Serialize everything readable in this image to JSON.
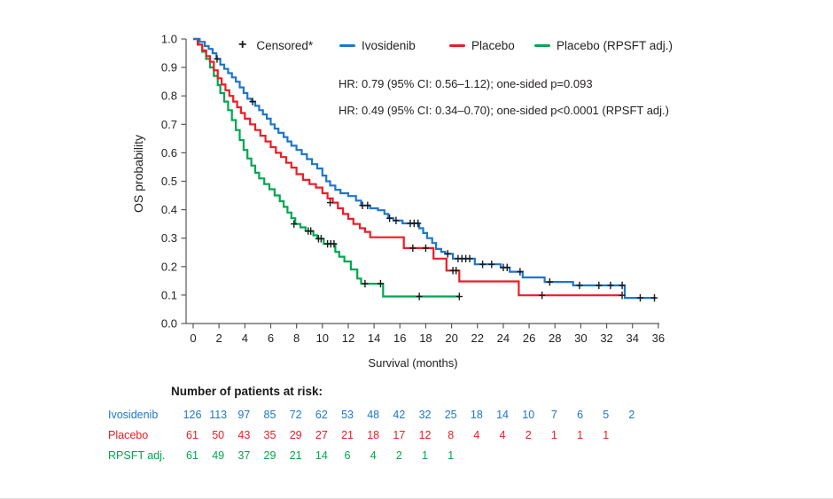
{
  "chart_data": {
    "type": "line",
    "subtype": "kaplan-meier-step-curves",
    "xlabel": "Survival (months)",
    "ylabel": "OS probability",
    "xlim": [
      0,
      36
    ],
    "ylim": [
      0.0,
      1.0
    ],
    "xticks": [
      0,
      2,
      4,
      6,
      8,
      10,
      12,
      14,
      16,
      18,
      20,
      22,
      24,
      26,
      28,
      30,
      32,
      34,
      36
    ],
    "yticks": [
      0.0,
      0.1,
      0.2,
      0.3,
      0.4,
      0.5,
      0.6,
      0.7,
      0.8,
      0.9,
      1.0
    ],
    "grid": false,
    "legend": {
      "position": "top",
      "censored_symbol": "+",
      "censored_label": "Censored*"
    },
    "annotations": [
      "HR: 0.79 (95% CI: 0.56–1.12); one-sided p=0.093",
      "HR: 0.49 (95% CI: 0.34–0.70); one-sided p<0.0001 (RPSFT adj.)"
    ],
    "colors": {
      "ivosidenib": "#1e76cc",
      "placebo": "#ed1c24",
      "rpsft": "#00a651",
      "censor_marks": "#1a1a1a",
      "axis": "#58595b",
      "text": "#231f20"
    },
    "series": [
      {
        "name": "Ivosidenib",
        "color": "#1e76cc",
        "steps": [
          [
            0,
            1.0
          ],
          [
            0.5,
            0.99
          ],
          [
            0.9,
            0.975
          ],
          [
            1.2,
            0.965
          ],
          [
            1.5,
            0.95
          ],
          [
            1.8,
            0.93
          ],
          [
            2.1,
            0.91
          ],
          [
            2.4,
            0.895
          ],
          [
            2.7,
            0.88
          ],
          [
            3.0,
            0.865
          ],
          [
            3.3,
            0.85
          ],
          [
            3.6,
            0.83
          ],
          [
            3.9,
            0.81
          ],
          [
            4.2,
            0.79
          ],
          [
            4.5,
            0.78
          ],
          [
            4.8,
            0.765
          ],
          [
            5.1,
            0.75
          ],
          [
            5.4,
            0.735
          ],
          [
            5.7,
            0.72
          ],
          [
            6.0,
            0.7
          ],
          [
            6.3,
            0.685
          ],
          [
            6.6,
            0.67
          ],
          [
            7.0,
            0.655
          ],
          [
            7.3,
            0.64
          ],
          [
            7.6,
            0.625
          ],
          [
            8.0,
            0.61
          ],
          [
            8.4,
            0.595
          ],
          [
            8.8,
            0.578
          ],
          [
            9.2,
            0.56
          ],
          [
            9.6,
            0.545
          ],
          [
            10.0,
            0.52
          ],
          [
            10.3,
            0.5
          ],
          [
            10.6,
            0.485
          ],
          [
            11.0,
            0.47
          ],
          [
            11.4,
            0.458
          ],
          [
            12.0,
            0.448
          ],
          [
            12.6,
            0.432
          ],
          [
            13.0,
            0.415
          ],
          [
            13.7,
            0.405
          ],
          [
            14.3,
            0.398
          ],
          [
            14.8,
            0.385
          ],
          [
            15.1,
            0.37
          ],
          [
            15.5,
            0.362
          ],
          [
            16.2,
            0.352
          ],
          [
            17.5,
            0.335
          ],
          [
            17.8,
            0.318
          ],
          [
            18.1,
            0.3
          ],
          [
            18.5,
            0.283
          ],
          [
            18.8,
            0.262
          ],
          [
            19.2,
            0.252
          ],
          [
            19.5,
            0.245
          ],
          [
            20.1,
            0.228
          ],
          [
            21.8,
            0.208
          ],
          [
            23.8,
            0.197
          ],
          [
            24.5,
            0.182
          ],
          [
            25.5,
            0.162
          ],
          [
            27.2,
            0.146
          ],
          [
            29.4,
            0.134
          ],
          [
            33.4,
            0.09
          ],
          [
            35.8,
            0.09
          ]
        ],
        "censors": [
          [
            1.85,
            0.93
          ],
          [
            4.6,
            0.78
          ],
          [
            13.1,
            0.415
          ],
          [
            13.5,
            0.415
          ],
          [
            15.2,
            0.37
          ],
          [
            15.7,
            0.362
          ],
          [
            16.8,
            0.352
          ],
          [
            17.1,
            0.352
          ],
          [
            17.4,
            0.352
          ],
          [
            19.7,
            0.245
          ],
          [
            20.5,
            0.228
          ],
          [
            20.8,
            0.228
          ],
          [
            21.1,
            0.228
          ],
          [
            21.4,
            0.228
          ],
          [
            22.4,
            0.208
          ],
          [
            23.1,
            0.208
          ],
          [
            24.0,
            0.197
          ],
          [
            24.3,
            0.197
          ],
          [
            25.3,
            0.182
          ],
          [
            27.6,
            0.146
          ],
          [
            29.9,
            0.134
          ],
          [
            31.4,
            0.134
          ],
          [
            32.3,
            0.134
          ],
          [
            33.2,
            0.134
          ],
          [
            34.6,
            0.09
          ],
          [
            35.7,
            0.09
          ]
        ]
      },
      {
        "name": "Placebo",
        "color": "#ed1c24",
        "steps": [
          [
            0,
            1.0
          ],
          [
            0.35,
            0.98
          ],
          [
            0.7,
            0.96
          ],
          [
            1.0,
            0.94
          ],
          [
            1.3,
            0.92
          ],
          [
            1.6,
            0.89
          ],
          [
            1.9,
            0.862
          ],
          [
            2.2,
            0.84
          ],
          [
            2.5,
            0.82
          ],
          [
            2.8,
            0.8
          ],
          [
            3.1,
            0.78
          ],
          [
            3.4,
            0.76
          ],
          [
            3.7,
            0.74
          ],
          [
            4.0,
            0.72
          ],
          [
            4.4,
            0.7
          ],
          [
            4.8,
            0.68
          ],
          [
            5.2,
            0.66
          ],
          [
            5.6,
            0.64
          ],
          [
            6.0,
            0.62
          ],
          [
            6.4,
            0.6
          ],
          [
            6.8,
            0.585
          ],
          [
            7.2,
            0.565
          ],
          [
            7.6,
            0.548
          ],
          [
            8.0,
            0.525
          ],
          [
            8.5,
            0.505
          ],
          [
            9.0,
            0.49
          ],
          [
            9.5,
            0.478
          ],
          [
            10.0,
            0.458
          ],
          [
            10.4,
            0.44
          ],
          [
            10.8,
            0.425
          ],
          [
            11.2,
            0.405
          ],
          [
            11.6,
            0.385
          ],
          [
            12.0,
            0.368
          ],
          [
            12.4,
            0.35
          ],
          [
            12.9,
            0.335
          ],
          [
            13.3,
            0.322
          ],
          [
            13.7,
            0.303
          ],
          [
            16.3,
            0.265
          ],
          [
            18.6,
            0.228
          ],
          [
            19.6,
            0.186
          ],
          [
            20.6,
            0.148
          ],
          [
            25.2,
            0.099
          ],
          [
            33.2,
            0.099
          ]
        ],
        "censors": [
          [
            10.6,
            0.425
          ],
          [
            17.0,
            0.265
          ],
          [
            18.0,
            0.265
          ],
          [
            20.1,
            0.186
          ],
          [
            20.35,
            0.186
          ],
          [
            27.0,
            0.099
          ],
          [
            33.2,
            0.099
          ]
        ]
      },
      {
        "name": "Placebo (RPSFT adj.)",
        "color": "#00a651",
        "steps": [
          [
            0,
            1.0
          ],
          [
            0.4,
            0.98
          ],
          [
            0.7,
            0.955
          ],
          [
            1.0,
            0.93
          ],
          [
            1.3,
            0.9
          ],
          [
            1.6,
            0.87
          ],
          [
            1.9,
            0.838
          ],
          [
            2.1,
            0.81
          ],
          [
            2.4,
            0.78
          ],
          [
            2.7,
            0.75
          ],
          [
            3.0,
            0.715
          ],
          [
            3.3,
            0.68
          ],
          [
            3.6,
            0.645
          ],
          [
            3.9,
            0.61
          ],
          [
            4.2,
            0.58
          ],
          [
            4.5,
            0.555
          ],
          [
            4.8,
            0.53
          ],
          [
            5.1,
            0.51
          ],
          [
            5.5,
            0.49
          ],
          [
            5.9,
            0.472
          ],
          [
            6.3,
            0.45
          ],
          [
            6.7,
            0.43
          ],
          [
            7.0,
            0.41
          ],
          [
            7.3,
            0.39
          ],
          [
            7.6,
            0.37
          ],
          [
            7.9,
            0.35
          ],
          [
            8.3,
            0.338
          ],
          [
            8.7,
            0.325
          ],
          [
            9.3,
            0.31
          ],
          [
            9.6,
            0.298
          ],
          [
            10.1,
            0.28
          ],
          [
            11.0,
            0.252
          ],
          [
            11.3,
            0.235
          ],
          [
            11.7,
            0.218
          ],
          [
            12.2,
            0.19
          ],
          [
            12.7,
            0.158
          ],
          [
            13.0,
            0.14
          ],
          [
            14.7,
            0.095
          ],
          [
            20.6,
            0.095
          ]
        ],
        "censors": [
          [
            7.8,
            0.35
          ],
          [
            8.9,
            0.325
          ],
          [
            9.1,
            0.325
          ],
          [
            9.7,
            0.298
          ],
          [
            9.9,
            0.298
          ],
          [
            10.4,
            0.28
          ],
          [
            10.65,
            0.28
          ],
          [
            10.9,
            0.28
          ],
          [
            13.3,
            0.14
          ],
          [
            14.5,
            0.14
          ],
          [
            17.5,
            0.095
          ],
          [
            20.6,
            0.095
          ]
        ]
      }
    ],
    "at_risk": {
      "title": "Number of patients at risk:",
      "months": [
        0,
        2,
        4,
        6,
        8,
        10,
        12,
        14,
        16,
        18,
        20,
        22,
        24,
        26,
        28,
        30,
        32,
        34
      ],
      "rows": [
        {
          "label": "Ivosidenib",
          "color": "#1e76cc",
          "counts": [
            126,
            113,
            97,
            85,
            72,
            62,
            53,
            48,
            42,
            32,
            25,
            18,
            14,
            10,
            7,
            6,
            5,
            2
          ]
        },
        {
          "label": "Placebo",
          "color": "#ed1c24",
          "counts": [
            61,
            50,
            43,
            35,
            29,
            27,
            21,
            18,
            17,
            12,
            8,
            4,
            4,
            2,
            1,
            1,
            1
          ]
        },
        {
          "label": "RPSFT adj.",
          "color": "#00a651",
          "counts": [
            61,
            49,
            37,
            29,
            21,
            14,
            6,
            4,
            2,
            1,
            1
          ]
        }
      ]
    }
  }
}
